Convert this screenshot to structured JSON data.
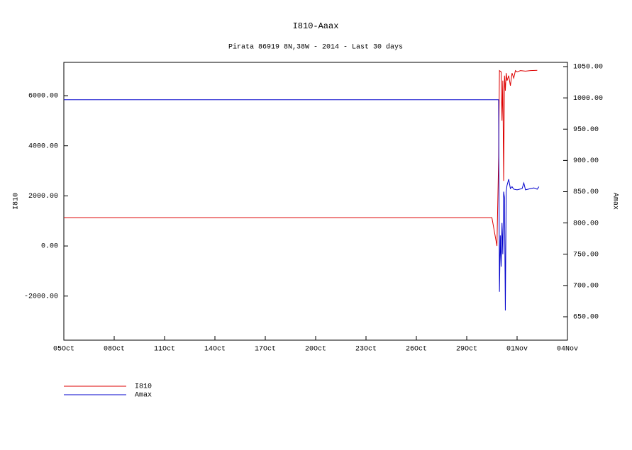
{
  "chart_data": {
    "type": "line",
    "title": "I810-Aaax",
    "subtitle": "Pirata 86919 8N,38W - 2014 - Last 30 days",
    "y_label": "I810",
    "y2_label": "Amax",
    "xlim": [
      0,
      30
    ],
    "xticks": [
      {
        "value": 0,
        "label": "05Oct"
      },
      {
        "value": 3,
        "label": "08Oct"
      },
      {
        "value": 6,
        "label": "11Oct"
      },
      {
        "value": 9,
        "label": "14Oct"
      },
      {
        "value": 12,
        "label": "17Oct"
      },
      {
        "value": 15,
        "label": "20Oct"
      },
      {
        "value": 18,
        "label": "23Oct"
      },
      {
        "value": 21,
        "label": "26Oct"
      },
      {
        "value": 24,
        "label": "29Oct"
      },
      {
        "value": 27,
        "label": "01Nov"
      },
      {
        "value": 30,
        "label": "04Nov"
      }
    ],
    "ylim": [
      -3760,
      7330
    ],
    "yticks": [
      {
        "value": -2000,
        "label": "-2000.00"
      },
      {
        "value": 0,
        "label": "0.00"
      },
      {
        "value": 2000,
        "label": "2000.00"
      },
      {
        "value": 4000,
        "label": "4000.00"
      },
      {
        "value": 6000,
        "label": "6000.00"
      }
    ],
    "y2lim": [
      612.6,
      1056.8
    ],
    "y2ticks": [
      {
        "value": 650,
        "label": "650.00"
      },
      {
        "value": 700,
        "label": "700.00"
      },
      {
        "value": 750,
        "label": "750.00"
      },
      {
        "value": 800,
        "label": "800.00"
      },
      {
        "value": 850,
        "label": "850.00"
      },
      {
        "value": 900,
        "label": "900.00"
      },
      {
        "value": 950,
        "label": "950.00"
      },
      {
        "value": 1000,
        "label": "1000.00"
      },
      {
        "value": 1050,
        "label": "1050.00"
      }
    ],
    "series": [
      {
        "name": "I810",
        "color": "#dd0000",
        "x": [
          0,
          25.5,
          25.8,
          25.9,
          25.95,
          26.05,
          26.1,
          26.15,
          26.2,
          26.25,
          26.3,
          26.35,
          26.4,
          26.5,
          26.6,
          26.7,
          26.8,
          26.9,
          27.0,
          27.2,
          27.5,
          27.8,
          28.2
        ],
        "values": [
          1130,
          1130,
          0,
          3500,
          7000,
          6950,
          5000,
          6600,
          2600,
          6800,
          6200,
          6900,
          6600,
          6800,
          6400,
          6900,
          6700,
          7000,
          6950,
          7000,
          6980,
          7000,
          7010
        ]
      },
      {
        "name": "Amax",
        "color": "#0000cc",
        "axis": "y2",
        "x": [
          0,
          25.9,
          25.95,
          26.0,
          26.05,
          26.1,
          26.15,
          26.2,
          26.25,
          26.3,
          26.35,
          26.4,
          26.5,
          26.6,
          26.7,
          26.8,
          27.0,
          27.3,
          27.4,
          27.5,
          27.8,
          28.0,
          28.2,
          28.3
        ],
        "values": [
          997,
          997,
          690,
          780,
          730,
          800,
          750,
          850,
          840,
          660,
          850,
          860,
          870,
          855,
          858,
          854,
          853,
          855,
          864,
          853,
          855,
          856,
          854,
          858
        ]
      }
    ]
  }
}
